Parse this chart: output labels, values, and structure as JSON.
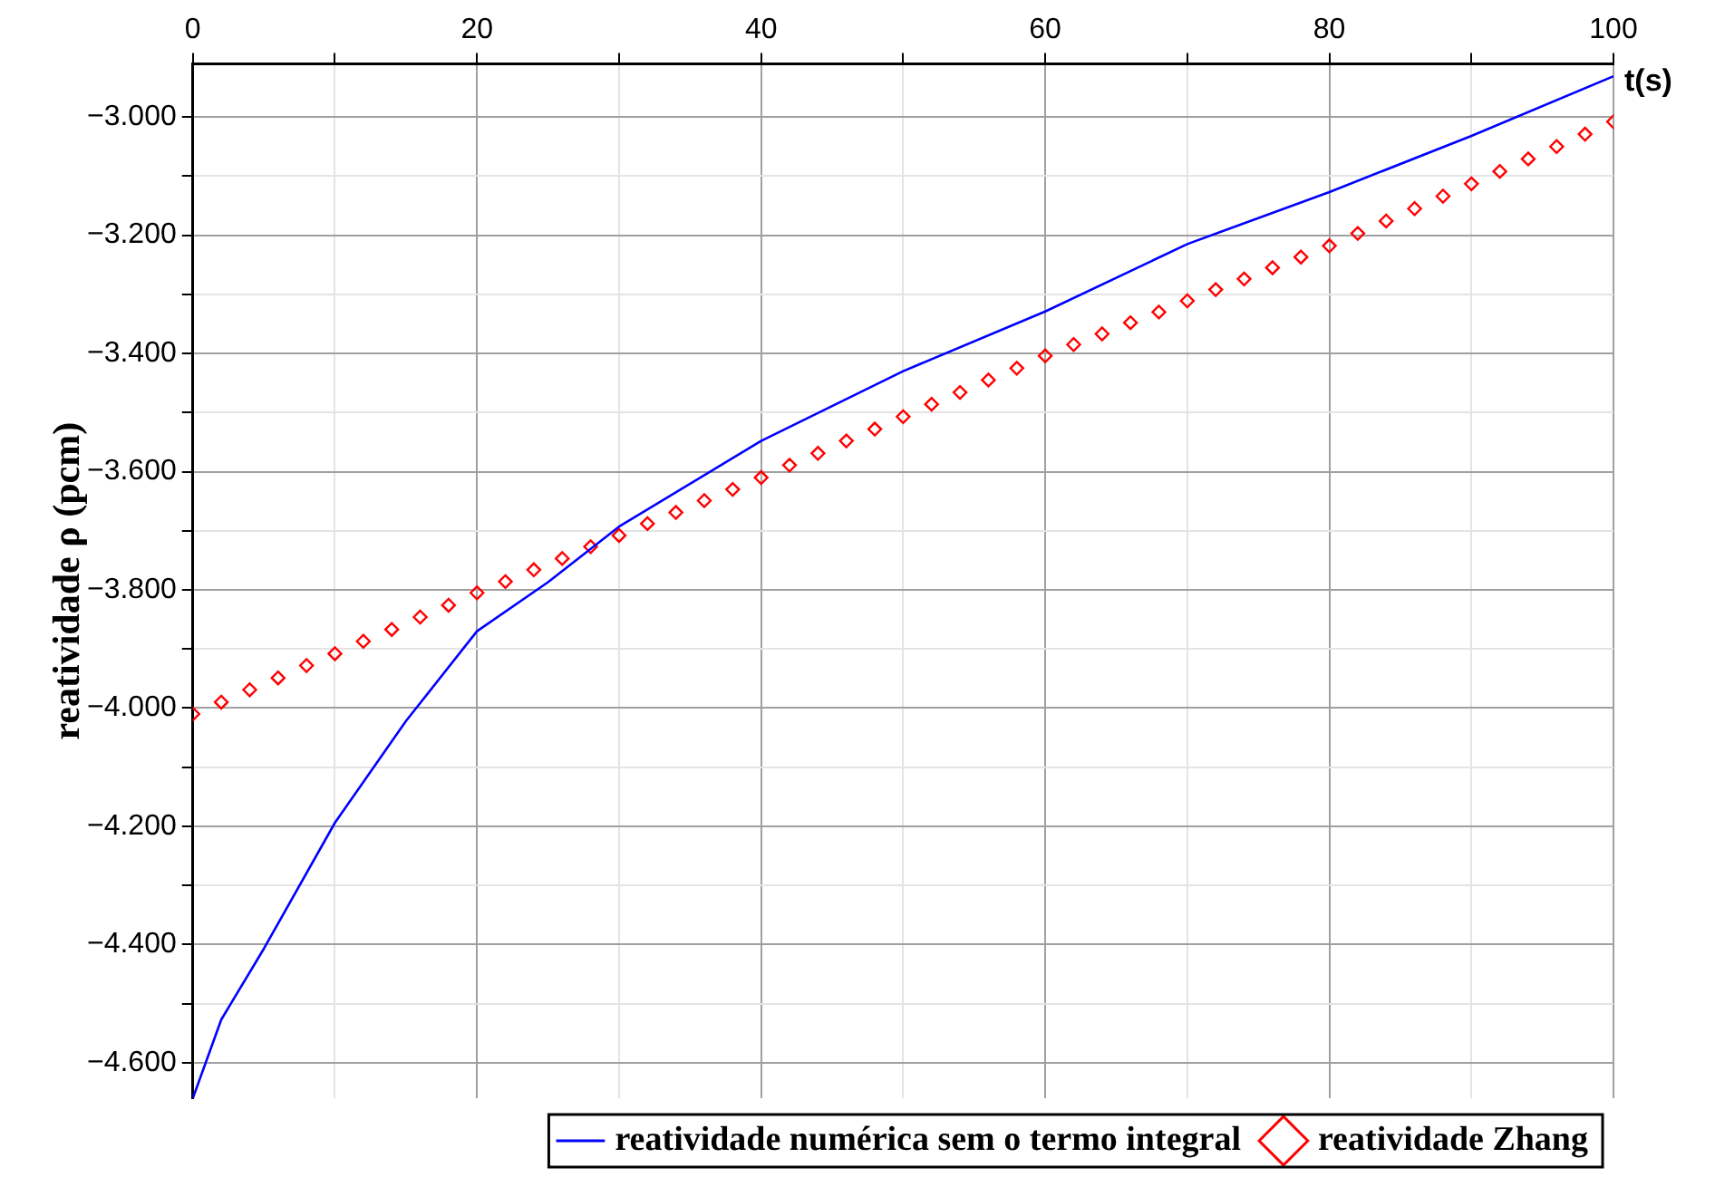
{
  "chart_data": {
    "type": "line",
    "xlabel": "t(s)",
    "ylabel": "reatividade ρ (pcm)",
    "xlim": [
      0,
      100
    ],
    "xticks": [
      0,
      {
        "value": 10,
        "label": null
      },
      20,
      {
        "value": 30,
        "label": null
      },
      40,
      {
        "value": 50,
        "label": null
      },
      60,
      {
        "value": 70,
        "label": null
      },
      80,
      {
        "value": 90,
        "label": null
      },
      100
    ],
    "ylim": [
      -4660,
      -2910
    ],
    "yticks": [
      {
        "value": -4600,
        "label": "−4.600"
      },
      {
        "value": -4500,
        "label": null
      },
      {
        "value": -4400,
        "label": "−4.400"
      },
      {
        "value": -4300,
        "label": null
      },
      {
        "value": -4200,
        "label": "−4.200"
      },
      {
        "value": -4100,
        "label": null
      },
      {
        "value": -4000,
        "label": "−4.000"
      },
      {
        "value": -3900,
        "label": null
      },
      {
        "value": -3800,
        "label": "−3.800"
      },
      {
        "value": -3700,
        "label": null
      },
      {
        "value": -3600,
        "label": "−3.600"
      },
      {
        "value": -3500,
        "label": null
      },
      {
        "value": -3400,
        "label": "−3.400"
      },
      {
        "value": -3300,
        "label": null
      },
      {
        "value": -3200,
        "label": "−3.200"
      },
      {
        "value": -3100,
        "label": null
      },
      {
        "value": -3000,
        "label": "−3.000"
      }
    ],
    "grid": true,
    "legend": "bottom",
    "series": [
      {
        "name": "reatividade numérica sem o termo integral",
        "color": "#0000ff",
        "marker": "none",
        "line_style": "solid",
        "x": [
          0,
          2,
          5,
          10,
          15,
          20,
          25,
          30,
          40,
          50,
          60,
          70,
          80,
          90,
          100
        ],
        "values": [
          -4660,
          -4527,
          -4407,
          -4194,
          -4022,
          -3870,
          -3787,
          -3693,
          -3548,
          -3430,
          -3329,
          -3215,
          -3127,
          -3032,
          -2931
        ]
      },
      {
        "name": "reatividade Zhang",
        "type": "scatter",
        "color": "#ff0000",
        "marker": "diamond",
        "x": [
          0,
          2,
          4,
          6,
          8,
          10,
          12,
          14,
          16,
          18,
          20,
          22,
          24,
          26,
          28,
          30,
          32,
          34,
          36,
          38,
          40,
          42,
          44,
          46,
          48,
          50,
          52,
          54,
          56,
          58,
          60,
          62,
          64,
          66,
          68,
          70,
          72,
          74,
          76,
          78,
          80,
          82,
          84,
          86,
          88,
          90,
          92,
          94,
          96,
          98,
          100
        ],
        "values": [
          -4010,
          -3990,
          -3969,
          -3949,
          -3928,
          -3908,
          -3887,
          -3867,
          -3846,
          -3826,
          -3805,
          -3786,
          -3766,
          -3747,
          -3727,
          -3708,
          -3688,
          -3669,
          -3649,
          -3630,
          -3610,
          -3589,
          -3569,
          -3548,
          -3528,
          -3507,
          -3486,
          -3466,
          -3445,
          -3425,
          -3404,
          -3385,
          -3367,
          -3348,
          -3330,
          -3311,
          -3292,
          -3274,
          -3255,
          -3237,
          -3218,
          -3197,
          -3176,
          -3155,
          -3134,
          -3113,
          -3092,
          -3071,
          -3050,
          -3029,
          -3008
        ]
      }
    ]
  }
}
